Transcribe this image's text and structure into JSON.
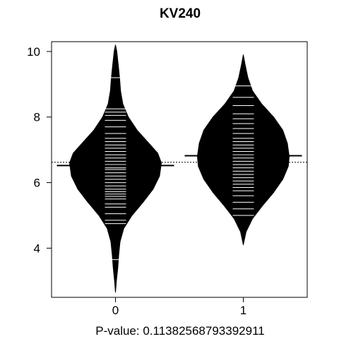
{
  "chart_data": {
    "type": "beanplot",
    "title": "KV240",
    "xlabel": "P-value: 0.11382568793392911",
    "ylabel": "",
    "categories": [
      "0",
      "1"
    ],
    "ylim": [
      2.5,
      10.3
    ],
    "y_ticks": [
      4,
      6,
      8,
      10
    ],
    "overall_mean": 6.62,
    "series": [
      {
        "category": "0",
        "mean": 6.52,
        "range": [
          2.65,
          10.2
        ],
        "density": [
          [
            2.65,
            0.0
          ],
          [
            3.0,
            0.02
          ],
          [
            3.4,
            0.05
          ],
          [
            3.8,
            0.07
          ],
          [
            4.2,
            0.1
          ],
          [
            4.6,
            0.18
          ],
          [
            5.0,
            0.36
          ],
          [
            5.4,
            0.6
          ],
          [
            5.8,
            0.82
          ],
          [
            6.2,
            0.96
          ],
          [
            6.6,
            1.0
          ],
          [
            6.9,
            0.92
          ],
          [
            7.2,
            0.73
          ],
          [
            7.6,
            0.47
          ],
          [
            8.0,
            0.28
          ],
          [
            8.4,
            0.16
          ],
          [
            8.8,
            0.11
          ],
          [
            9.2,
            0.09
          ],
          [
            9.6,
            0.06
          ],
          [
            10.0,
            0.03
          ],
          [
            10.2,
            0.0
          ]
        ],
        "observations": [
          3.65,
          4.75,
          4.85,
          5.05,
          5.25,
          5.35,
          5.5,
          5.58,
          5.65,
          5.72,
          5.8,
          5.9,
          6.0,
          6.1,
          6.2,
          6.3,
          6.4,
          6.45,
          6.55,
          6.65,
          6.75,
          6.85,
          6.95,
          7.05,
          7.15,
          7.25,
          7.35,
          7.5,
          7.7,
          7.9,
          8.05,
          8.15,
          8.25,
          9.2
        ]
      },
      {
        "category": "1",
        "mean": 6.82,
        "range": [
          4.1,
          9.9
        ],
        "density": [
          [
            4.1,
            0.0
          ],
          [
            4.5,
            0.06
          ],
          [
            4.9,
            0.2
          ],
          [
            5.3,
            0.42
          ],
          [
            5.7,
            0.66
          ],
          [
            6.1,
            0.86
          ],
          [
            6.5,
            0.98
          ],
          [
            6.8,
            1.0
          ],
          [
            7.2,
            0.96
          ],
          [
            7.6,
            0.86
          ],
          [
            8.0,
            0.66
          ],
          [
            8.4,
            0.4
          ],
          [
            8.8,
            0.2
          ],
          [
            9.2,
            0.1
          ],
          [
            9.6,
            0.04
          ],
          [
            9.9,
            0.0
          ]
        ],
        "observations": [
          5.0,
          5.2,
          5.4,
          5.6,
          5.75,
          5.85,
          5.95,
          6.05,
          6.15,
          6.25,
          6.35,
          6.45,
          6.55,
          6.65,
          6.75,
          6.85,
          6.95,
          7.05,
          7.15,
          7.25,
          7.35,
          7.5,
          7.65,
          7.8,
          7.95,
          8.1,
          8.35,
          8.6,
          8.95
        ]
      }
    ],
    "grid": false,
    "legend": "none"
  }
}
